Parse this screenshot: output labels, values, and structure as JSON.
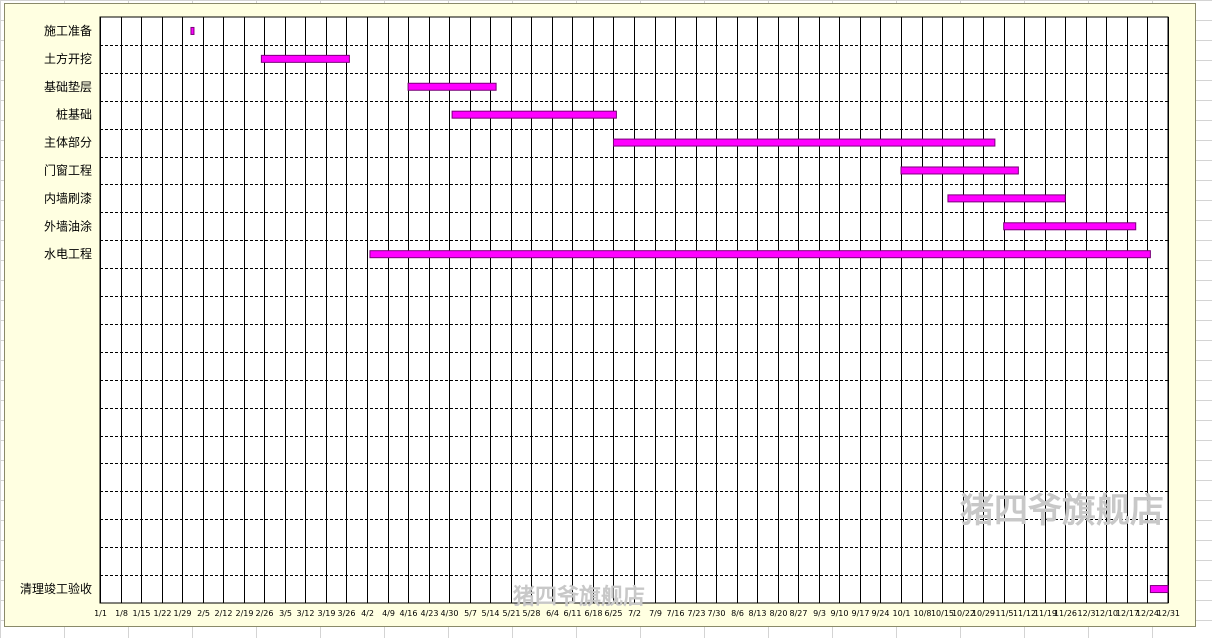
{
  "chart_data": {
    "type": "gantt",
    "tasks": [
      {
        "name": "施工准备",
        "start": "2/1",
        "end": "2/2"
      },
      {
        "name": "土方开挖",
        "start": "2/25",
        "end": "3/27"
      },
      {
        "name": "基础垫层",
        "start": "4/16",
        "end": "5/16"
      },
      {
        "name": "桩基础",
        "start": "5/1",
        "end": "6/26"
      },
      {
        "name": "主体部分",
        "start": "6/25",
        "end": "11/2"
      },
      {
        "name": "门窗工程",
        "start": "10/1",
        "end": "11/10"
      },
      {
        "name": "内墙刷漆",
        "start": "10/17",
        "end": "11/26"
      },
      {
        "name": "外墙油涂",
        "start": "11/5",
        "end": "12/20"
      },
      {
        "name": "水电工程",
        "start": "4/3",
        "end": "12/25"
      },
      {
        "name": "清理竣工验收",
        "start": "12/25",
        "end": "12/31"
      }
    ],
    "x_tick_labels": [
      "1/1",
      "1/8",
      "1/15",
      "1/22",
      "1/29",
      "2/5",
      "2/12",
      "2/19",
      "2/26",
      "3/5",
      "3/12",
      "3/19",
      "3/26",
      "4/2",
      "4/9",
      "4/16",
      "4/23",
      "4/30",
      "5/7",
      "5/14",
      "5/21",
      "5/28",
      "6/4",
      "6/11",
      "6/18",
      "6/25",
      "7/2",
      "7/9",
      "7/16",
      "7/23",
      "7/30",
      "8/6",
      "8/13",
      "8/20",
      "8/27",
      "9/3",
      "9/10",
      "9/17",
      "9/24",
      "10/1",
      "10/8",
      "10/15",
      "10/22",
      "10/29",
      "11/5",
      "11/12",
      "11/19",
      "11/26",
      "12/3",
      "12/10",
      "12/17",
      "12/24",
      "12/31"
    ],
    "xlim": [
      "1/1",
      "12/31"
    ],
    "row_count": 21,
    "last_task_row": 20,
    "grid": true,
    "colors": {
      "bar_fill": "#ff00ff",
      "bar_stroke": "#7a007a",
      "background": "#ffffe1",
      "grid": "#000000"
    }
  },
  "watermarks": [
    "猪四爷旗舰店",
    "猪四爷旗舰店"
  ]
}
